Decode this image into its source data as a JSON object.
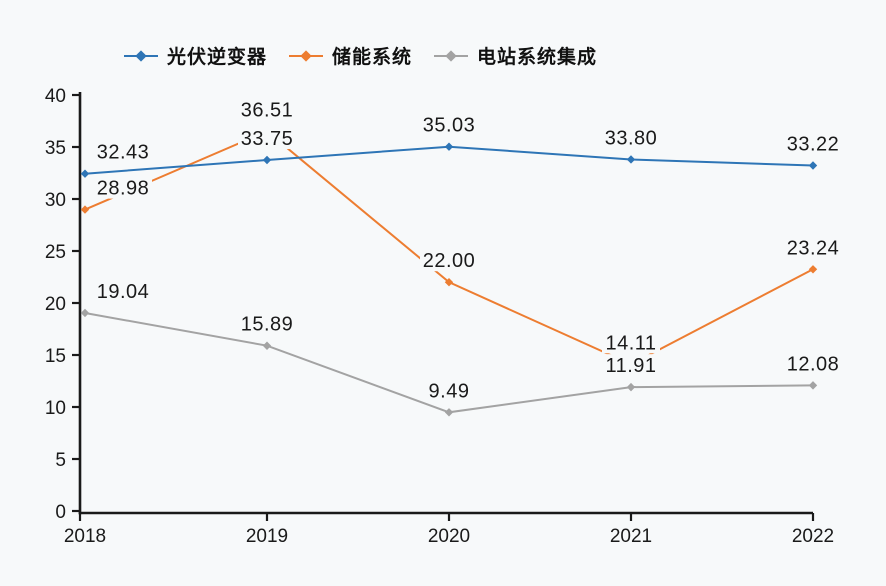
{
  "chart_data": {
    "type": "line",
    "title": "",
    "xlabel": "",
    "ylabel": "",
    "grid": false,
    "legend_position": "top",
    "categories": [
      "2018",
      "2019",
      "2020",
      "2021",
      "2022"
    ],
    "series": [
      {
        "name": "光伏逆变器",
        "color": "#2e75b6",
        "values": [
          32.43,
          33.75,
          35.03,
          33.8,
          33.22
        ],
        "labels": [
          "32.43",
          "33.75",
          "35.03",
          "33.80",
          "33.22"
        ]
      },
      {
        "name": "储能系统",
        "color": "#ed7d31",
        "values": [
          28.98,
          36.51,
          22.0,
          14.11,
          23.24
        ],
        "labels": [
          "28.98",
          "36.51",
          "22.00",
          "14.11",
          "23.24"
        ]
      },
      {
        "name": "电站系统集成",
        "color": "#a3a3a3",
        "values": [
          19.04,
          15.89,
          9.49,
          11.91,
          12.08
        ],
        "labels": [
          "19.04",
          "15.89",
          "9.49",
          "11.91",
          "12.08"
        ]
      }
    ],
    "ylim": [
      0,
      40
    ],
    "y_ticks": [
      "0",
      "5",
      "10",
      "15",
      "20",
      "25",
      "30",
      "35",
      "40"
    ]
  },
  "colors": {
    "background": "#f7f9fa",
    "axis": "#1a1a1a",
    "text": "#1a1a1a"
  }
}
